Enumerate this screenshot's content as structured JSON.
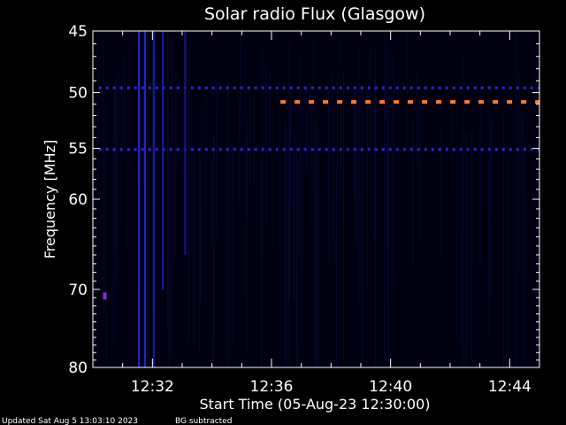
{
  "chart_data": {
    "type": "heatmap",
    "title": "Solar radio Flux (Glasgow)",
    "ylabel": "Frequency [MHz]",
    "xlabel": "Start Time (05-Aug-23 12:30:00)",
    "footer_left": "Updated Sat Aug  5 13:03:10 2023",
    "footer_right": "BG subtracted",
    "x_unit": "minutes after 12:30:00",
    "xlim": [
      0,
      15
    ],
    "ylim": [
      45,
      80
    ],
    "y_scale": "log",
    "y_ticks": [
      45,
      50,
      55,
      60,
      70,
      80
    ],
    "x_ticks": [
      {
        "value": 2,
        "label": "12:32"
      },
      {
        "value": 6,
        "label": "12:36"
      },
      {
        "value": 10,
        "label": "12:40"
      },
      {
        "value": 14,
        "label": "12:44"
      }
    ],
    "background_color": "#000010",
    "features": [
      {
        "kind": "horizontal-band",
        "frequency_mhz": 49.6,
        "x_range": [
          0.2,
          15
        ],
        "color": "#2a2ad8",
        "style": "dotted"
      },
      {
        "kind": "horizontal-band",
        "frequency_mhz": 55.1,
        "x_range": [
          0.2,
          15
        ],
        "color": "#2a2ad8",
        "style": "dotted"
      },
      {
        "kind": "horizontal-band",
        "frequency_mhz": 50.8,
        "x_range": [
          6.3,
          15
        ],
        "color": "#ff7a2a",
        "style": "dashed"
      },
      {
        "kind": "vertical-burst",
        "x": 1.55,
        "freq_range": [
          45,
          80
        ],
        "color": "#2a2ad8"
      },
      {
        "kind": "vertical-burst",
        "x": 1.75,
        "freq_range": [
          45,
          80
        ],
        "color": "#2a2ad8"
      },
      {
        "kind": "vertical-burst",
        "x": 2.05,
        "freq_range": [
          45,
          80
        ],
        "color": "#1c1ca8"
      },
      {
        "kind": "vertical-burst",
        "x": 2.35,
        "freq_range": [
          45,
          70
        ],
        "color": "#1c1ca8"
      },
      {
        "kind": "vertical-burst",
        "x": 3.1,
        "freq_range": [
          45,
          66
        ],
        "color": "#16168a"
      },
      {
        "kind": "spot",
        "x": 0.4,
        "frequency_mhz": 70.8,
        "color": "#8a2ad8"
      }
    ]
  }
}
